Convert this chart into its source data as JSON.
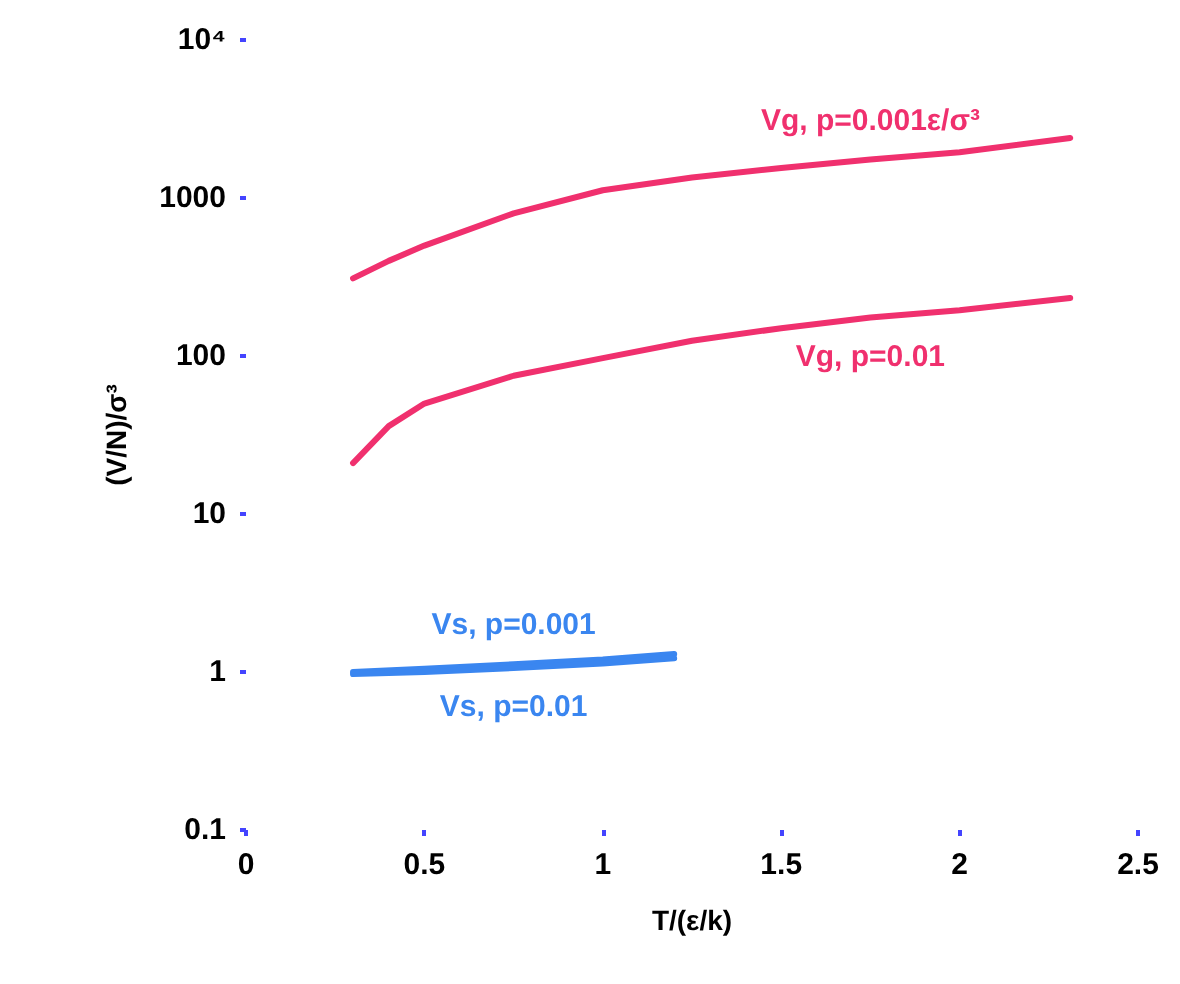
{
  "chart_data": {
    "type": "line",
    "xlabel": "T/(ε/k)",
    "ylabel": "(V/N)/σ³",
    "log": "y",
    "xlim": [
      0,
      2.5
    ],
    "xticks": [
      0,
      0.5,
      1,
      1.5,
      2,
      2.5
    ],
    "ylim": [
      0.1,
      10000
    ],
    "yticks": [
      0.1,
      1,
      10,
      100,
      1000,
      {
        "value": 10000,
        "label": "10⁴"
      }
    ],
    "grid": false,
    "legend": false,
    "marker": "none",
    "line_style": "solid",
    "series": [
      {
        "name": "Vg, p=0.001ε/σ³",
        "color": "#f0306e",
        "x": [
          0.3,
          0.4,
          0.5,
          0.75,
          1,
          1.25,
          1.5,
          1.75,
          2,
          2.31
        ],
        "values": [
          310,
          400,
          500,
          800,
          1120,
          1350,
          1550,
          1750,
          1950,
          2400
        ]
      },
      {
        "name": "Vg, p=0.01",
        "color": "#f0306e",
        "x": [
          0.3,
          0.4,
          0.5,
          0.75,
          1,
          1.25,
          1.5,
          1.75,
          2,
          2.31
        ],
        "values": [
          21,
          36,
          50,
          75,
          97,
          125,
          150,
          175,
          195,
          233
        ]
      },
      {
        "name": "Vs, p=0.001",
        "color": "#3a86f0",
        "x": [
          0.3,
          0.5,
          0.75,
          1,
          1.2
        ],
        "values": [
          1.0,
          1.05,
          1.12,
          1.2,
          1.3
        ]
      },
      {
        "name": "Vs, p=0.01",
        "color": "#3a86f0",
        "x": [
          0.3,
          0.5,
          0.75,
          1,
          1.2
        ],
        "values": [
          0.97,
          1.0,
          1.06,
          1.13,
          1.22
        ]
      }
    ]
  }
}
